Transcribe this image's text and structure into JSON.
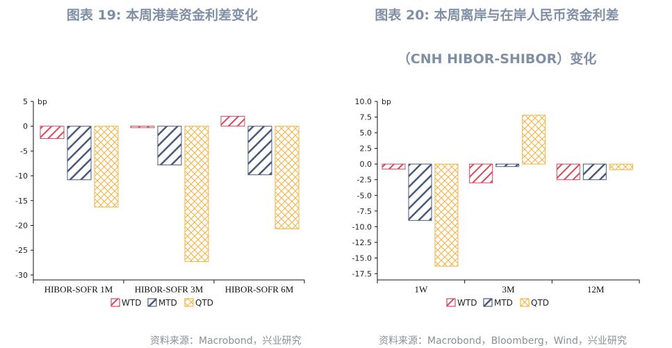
{
  "left": {
    "title": "图表 19: 本周港美资金利差变化",
    "source": "资料来源：Macrobond，兴业研究",
    "chart_data": {
      "type": "bar",
      "unit": "bp",
      "categories": [
        "HIBOR-SOFR 1M",
        "HIBOR-SOFR 3M",
        "HIBOR-SOFR 6M"
      ],
      "series": [
        {
          "name": "WTD",
          "values": [
            -2.5,
            -0.3,
            2.0
          ]
        },
        {
          "name": "MTD",
          "values": [
            -10.8,
            -7.8,
            -9.8
          ]
        },
        {
          "name": "QTD",
          "values": [
            -16.3,
            -27.3,
            -20.7
          ]
        }
      ],
      "yticks": [
        5,
        0,
        -5,
        -10,
        -15,
        -20,
        -25,
        -30
      ],
      "ylim": [
        -31,
        5
      ],
      "grid": false,
      "legend": "bottom"
    }
  },
  "right": {
    "title_line1": "图表 20: 本周离岸与在岸人民币资金利差",
    "title_line2": "（CNH HIBOR-SHIBOR）变化",
    "source": "资料来源：Macrobond，Bloomberg，Wind，兴业研究",
    "chart_data": {
      "type": "bar",
      "unit": "bp",
      "categories": [
        "1W",
        "3M",
        "12M"
      ],
      "series": [
        {
          "name": "WTD",
          "values": [
            -0.8,
            -3.0,
            -2.5
          ]
        },
        {
          "name": "MTD",
          "values": [
            -9.0,
            -0.4,
            -2.5
          ]
        },
        {
          "name": "QTD",
          "values": [
            -16.3,
            7.8,
            -0.9
          ]
        }
      ],
      "yticks": [
        "10.0",
        "7.5",
        "5.0",
        "2.5",
        "0.0",
        "-2.5",
        "-5.0",
        "-7.5",
        "-10.0",
        "-12.5",
        "-15.0",
        "-17.5"
      ],
      "ylim": [
        -18.5,
        10
      ],
      "grid": false,
      "legend": "bottom"
    }
  },
  "colors": {
    "WTD": "#d9475a",
    "MTD": "#47597a",
    "QTD": "#f5b340"
  }
}
